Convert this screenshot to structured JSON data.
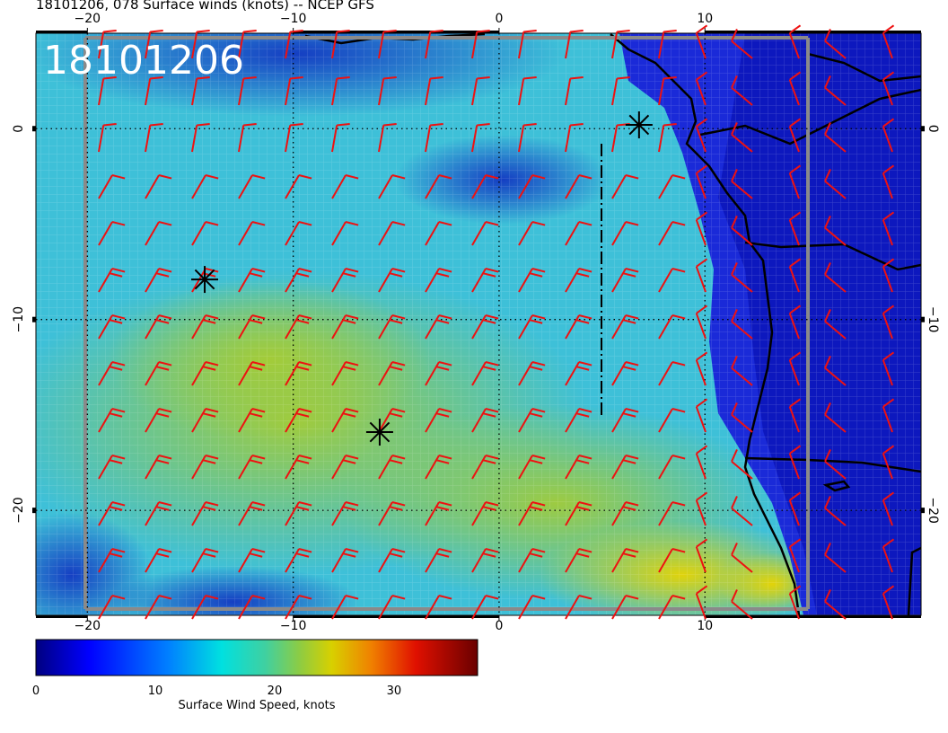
{
  "title": "18101206, 078 Surface winds (knots) -- NCEP GFS",
  "stamp": "18101206",
  "map": {
    "lon_range": [
      -22.5,
      20.5
    ],
    "lat_range": [
      -25.5,
      5
    ],
    "lon_ticks": [
      {
        "value": -20,
        "label": "−20"
      },
      {
        "value": -10,
        "label": "−10"
      },
      {
        "value": 0,
        "label": "0"
      },
      {
        "value": 10,
        "label": "10"
      }
    ],
    "lat_ticks": [
      {
        "value": 0,
        "label": "0"
      },
      {
        "value": -10,
        "label": "−10"
      },
      {
        "value": -20,
        "label": "−20"
      }
    ],
    "graticule": "dotted",
    "storm_markers": [
      {
        "name": "storm-marker-1",
        "lon": -14.3,
        "lat": -7.9
      },
      {
        "name": "storm-marker-2",
        "lon": -5.8,
        "lat": -15.9
      },
      {
        "name": "storm-marker-3",
        "lon": 6.8,
        "lat": 0.2
      }
    ],
    "barb_color": "#ee1111"
  },
  "colorbar": {
    "label": "Surface Wind Speed, knots",
    "range": [
      0,
      37
    ],
    "ticks": [
      {
        "value": 0,
        "label": "0"
      },
      {
        "value": 10,
        "label": "10"
      },
      {
        "value": 20,
        "label": "20"
      },
      {
        "value": 30,
        "label": "30"
      }
    ]
  }
}
